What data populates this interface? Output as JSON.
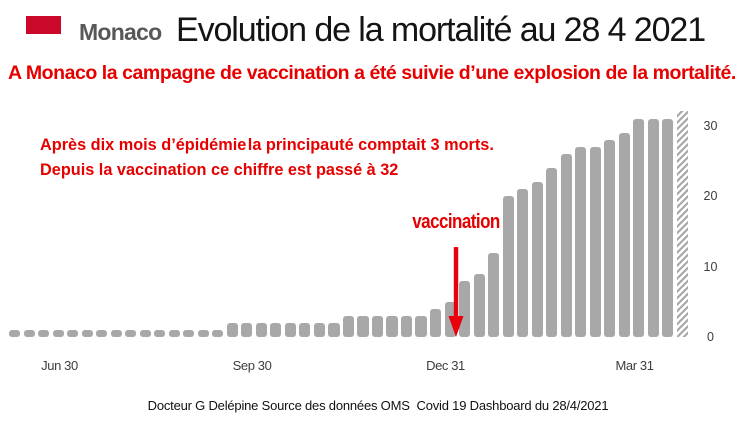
{
  "header": {
    "brand": "Monaco",
    "title": "Evolution de la mortalité au 28 4 2021"
  },
  "subtitle": "A Monaco la campagne de vaccination a été suivie d’une explosion de la mortalité.",
  "annotation": {
    "line1_part1": "Après dix mois d’épidémie",
    "line1_part2": "la principauté comptait 3 morts.",
    "line2": "Depuis la vaccination ce chiffre est passé à 32"
  },
  "vaccination_label": "vaccination",
  "footer": "Docteur G Delépine Source des données OMS  Covid 19 Dashboard du 28/4/2021",
  "colors": {
    "bar": "#a8a8a8",
    "red_text": "#e60000",
    "arrow_red": "#e8000d",
    "flag_red": "#c9082a",
    "brand_gray": "#58585a"
  },
  "chart_data": {
    "type": "bar",
    "title": "Evolution de la mortalité au 28 4 2021",
    "xlabel": "",
    "ylabel": "",
    "x_tick_labels": [
      "Jun 30",
      "Sep 30",
      "Dec 31",
      "Mar 31"
    ],
    "y_tick_labels": [
      "0",
      "10",
      "20",
      "30"
    ],
    "ylim": [
      0,
      32
    ],
    "grid": false,
    "legend": false,
    "values": [
      1,
      1,
      1,
      1,
      1,
      1,
      1,
      1,
      1,
      1,
      1,
      1,
      1,
      1,
      1,
      2,
      2,
      2,
      2,
      2,
      2,
      2,
      2,
      3,
      3,
      3,
      3,
      3,
      3,
      4,
      5,
      8,
      9,
      12,
      20,
      21,
      22,
      24,
      26,
      27,
      27,
      28,
      29,
      31,
      31,
      31,
      32
    ],
    "last_bar_hatched": true,
    "annotation_arrow_label": "vaccination"
  }
}
